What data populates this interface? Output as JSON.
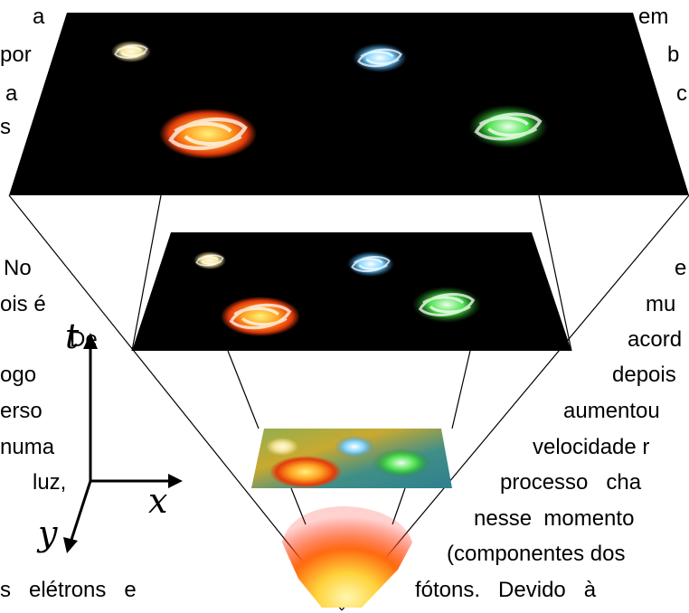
{
  "axes": {
    "t": "t",
    "x": "x",
    "y": "y"
  },
  "text_left": [
    {
      "key": "l1",
      "text": "a"
    },
    {
      "key": "l2",
      "text": "por"
    },
    {
      "key": "l3",
      "text": "a"
    },
    {
      "key": "l4",
      "text": "s"
    },
    {
      "key": "l5",
      "text": "No"
    },
    {
      "key": "l6",
      "text": "ois é"
    },
    {
      "key": "l7",
      "text": "De"
    },
    {
      "key": "l8",
      "text": "ogo"
    },
    {
      "key": "l9",
      "text": "erso"
    },
    {
      "key": "l10",
      "text": "numa"
    },
    {
      "key": "l11",
      "text": "luz,"
    },
    {
      "key": "l12",
      "text": "s   elétrons   e"
    }
  ],
  "text_right": [
    {
      "key": "r1",
      "text": "em"
    },
    {
      "key": "r2",
      "text": "b"
    },
    {
      "key": "r3",
      "text": "c"
    },
    {
      "key": "r4",
      "text": "e"
    },
    {
      "key": "r5",
      "text": "mu"
    },
    {
      "key": "r6",
      "text": "acord"
    },
    {
      "key": "r7",
      "text": "depois"
    },
    {
      "key": "r8",
      "text": "aumentou"
    },
    {
      "key": "r9",
      "text": "velocidade r"
    },
    {
      "key": "r10",
      "text": "processo   cha"
    },
    {
      "key": "r11",
      "text": "nesse  momento"
    },
    {
      "key": "r12",
      "text": "(componentes dos"
    },
    {
      "key": "r13",
      "text": "fótons.   Devido   à"
    }
  ],
  "colors": {
    "slice_bg": "#000000",
    "galaxy_yellow": "#f5e49a",
    "galaxy_blue": "#7fd3ff",
    "galaxy_orange": "#ffa020",
    "galaxy_green": "#4be04b",
    "bigbang_core": "#fff8b0",
    "bigbang_outer": "#ff2010"
  }
}
